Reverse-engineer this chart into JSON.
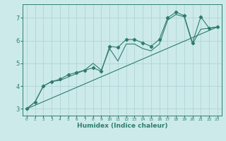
{
  "xlabel": "Humidex (Indice chaleur)",
  "ylabel": "",
  "bg_color": "#cdeaea",
  "line_color": "#2e7d6e",
  "grid_color": "#afd4d4",
  "xlim": [
    -0.5,
    23.5
  ],
  "ylim": [
    2.7,
    7.6
  ],
  "xticks": [
    0,
    1,
    2,
    3,
    4,
    5,
    6,
    7,
    8,
    9,
    10,
    11,
    12,
    13,
    14,
    15,
    16,
    17,
    18,
    19,
    20,
    21,
    22,
    23
  ],
  "yticks": [
    3,
    4,
    5,
    6,
    7
  ],
  "series1_x": [
    0,
    1,
    2,
    3,
    4,
    5,
    6,
    7,
    8,
    9,
    10,
    11,
    12,
    13,
    14,
    15,
    16,
    17,
    18,
    19,
    20,
    21,
    22,
    23
  ],
  "series1_y": [
    3.0,
    3.3,
    4.0,
    4.2,
    4.3,
    4.5,
    4.6,
    4.7,
    4.8,
    4.65,
    5.75,
    5.7,
    6.05,
    6.05,
    5.9,
    5.75,
    6.05,
    7.0,
    7.25,
    7.1,
    5.9,
    7.05,
    6.55,
    6.6
  ],
  "series2_x": [
    0,
    1,
    2,
    3,
    4,
    5,
    6,
    7,
    8,
    9,
    10,
    11,
    12,
    13,
    14,
    15,
    16,
    17,
    18,
    19,
    20,
    21,
    22,
    23
  ],
  "series2_y": [
    3.0,
    3.3,
    4.0,
    4.2,
    4.25,
    4.4,
    4.55,
    4.7,
    5.0,
    4.7,
    5.65,
    5.1,
    5.85,
    5.85,
    5.65,
    5.55,
    5.85,
    6.9,
    7.15,
    7.05,
    5.85,
    6.5,
    6.55,
    6.6
  ],
  "series3_x": [
    0,
    23
  ],
  "series3_y": [
    3.0,
    6.6
  ]
}
